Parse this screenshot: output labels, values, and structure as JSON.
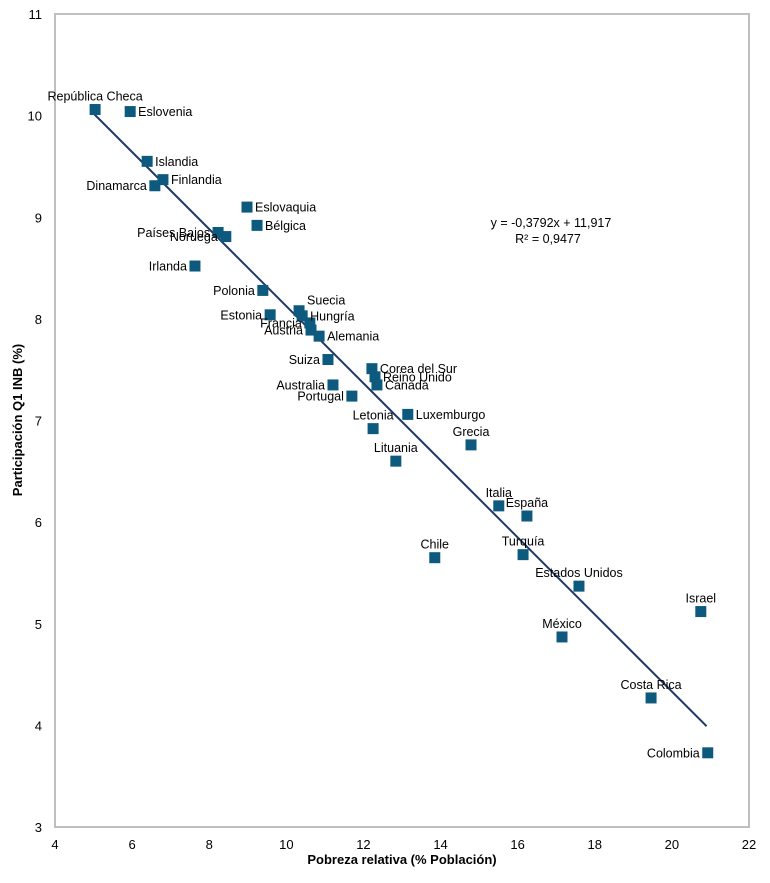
{
  "chart_data": {
    "type": "scatter",
    "title": "",
    "xlabel": "Pobreza relativa (% Población)",
    "ylabel": "Participación Q1 INB (%)",
    "xlim": [
      4,
      22
    ],
    "ylim": [
      3,
      11
    ],
    "xticks": [
      "4",
      "6",
      "8",
      "10",
      "12",
      "14",
      "16",
      "18",
      "20",
      "22"
    ],
    "yticks": [
      "3",
      "4",
      "5",
      "6",
      "7",
      "8",
      "9",
      "10",
      "11"
    ],
    "grid": false,
    "legend": "none",
    "marker_color": "#0e5a7e",
    "trendline": {
      "type": "linear",
      "slope": -0.3792,
      "intercept": 11.917,
      "x_range": [
        5.0,
        20.9
      ],
      "color": "#1f3864",
      "equation_label": "y = -0,3792x + 11,917",
      "r2_label": "R² = 0,9477"
    },
    "points": [
      {
        "name": "República Checa",
        "x": 5.04,
        "y": 10.06,
        "label_pos": "top"
      },
      {
        "name": "Eslovenia",
        "x": 5.95,
        "y": 10.04,
        "label_pos": "right"
      },
      {
        "name": "Islandia",
        "x": 6.39,
        "y": 9.55,
        "label_pos": "right"
      },
      {
        "name": "Finlandia",
        "x": 6.8,
        "y": 9.37,
        "label_pos": "right"
      },
      {
        "name": "Dinamarca",
        "x": 6.59,
        "y": 9.31,
        "label_pos": "left"
      },
      {
        "name": "Eslovaquia",
        "x": 8.98,
        "y": 9.1,
        "label_pos": "right"
      },
      {
        "name": "Bélgica",
        "x": 9.24,
        "y": 8.92,
        "label_pos": "right"
      },
      {
        "name": "Países Bajos",
        "x": 8.23,
        "y": 8.85,
        "label_pos": "left"
      },
      {
        "name": "Noruega",
        "x": 8.43,
        "y": 8.81,
        "label_pos": "left"
      },
      {
        "name": "Irlanda",
        "x": 7.63,
        "y": 8.52,
        "label_pos": "left"
      },
      {
        "name": "Polonia",
        "x": 9.39,
        "y": 8.28,
        "label_pos": "left"
      },
      {
        "name": "Estonia",
        "x": 9.58,
        "y": 8.04,
        "label_pos": "left"
      },
      {
        "name": "Suecia",
        "x": 10.33,
        "y": 8.08,
        "label_pos": "right-up"
      },
      {
        "name": "Hungría",
        "x": 10.41,
        "y": 8.03,
        "label_pos": "right"
      },
      {
        "name": "Francia",
        "x": 10.61,
        "y": 7.96,
        "label_pos": "left"
      },
      {
        "name": "Austria",
        "x": 10.64,
        "y": 7.89,
        "label_pos": "left"
      },
      {
        "name": "Alemania",
        "x": 10.85,
        "y": 7.83,
        "label_pos": "right"
      },
      {
        "name": "Suiza",
        "x": 11.08,
        "y": 7.6,
        "label_pos": "left"
      },
      {
        "name": "Corea del Sur",
        "x": 12.22,
        "y": 7.51,
        "label_pos": "right"
      },
      {
        "name": "Reino Unido",
        "x": 12.3,
        "y": 7.43,
        "label_pos": "right"
      },
      {
        "name": "Canadá",
        "x": 12.35,
        "y": 7.35,
        "label_pos": "right"
      },
      {
        "name": "Australia",
        "x": 11.21,
        "y": 7.35,
        "label_pos": "left"
      },
      {
        "name": "Portugal",
        "x": 11.7,
        "y": 7.24,
        "label_pos": "left"
      },
      {
        "name": "Luxemburgo",
        "x": 13.15,
        "y": 7.06,
        "label_pos": "right"
      },
      {
        "name": "Letonia",
        "x": 12.25,
        "y": 6.92,
        "label_pos": "top"
      },
      {
        "name": "Grecia",
        "x": 14.79,
        "y": 6.76,
        "label_pos": "top"
      },
      {
        "name": "Lituania",
        "x": 12.84,
        "y": 6.6,
        "label_pos": "top"
      },
      {
        "name": "Italia",
        "x": 15.51,
        "y": 6.16,
        "label_pos": "top"
      },
      {
        "name": "España",
        "x": 16.24,
        "y": 6.06,
        "label_pos": "top"
      },
      {
        "name": "Chile",
        "x": 13.85,
        "y": 5.65,
        "label_pos": "top"
      },
      {
        "name": "Turquía",
        "x": 16.14,
        "y": 5.68,
        "label_pos": "top"
      },
      {
        "name": "Estados Unidos",
        "x": 17.59,
        "y": 5.37,
        "label_pos": "top"
      },
      {
        "name": "Israel",
        "x": 20.75,
        "y": 5.12,
        "label_pos": "top"
      },
      {
        "name": "México",
        "x": 17.15,
        "y": 4.87,
        "label_pos": "top"
      },
      {
        "name": "Costa Rica",
        "x": 19.46,
        "y": 4.27,
        "label_pos": "top"
      },
      {
        "name": "Colombia",
        "x": 20.93,
        "y": 3.73,
        "label_pos": "left"
      }
    ]
  }
}
